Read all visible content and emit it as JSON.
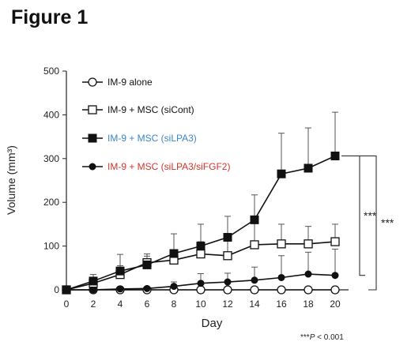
{
  "figure_title": "Figure 1",
  "significance_note": {
    "stars": "***",
    "p_label": "P",
    "rest": " < 0.001"
  },
  "colors": {
    "axis": "#222222",
    "legend_siLPA3": "#3a86c8",
    "legend_siLPA3_siFGF2": "#d6322a",
    "series": "#111111"
  },
  "chart_data": {
    "type": "line",
    "xlabel": "Day",
    "ylabel": "Volume (mm³)",
    "x": [
      0,
      2,
      4,
      6,
      8,
      10,
      12,
      14,
      16,
      18,
      20
    ],
    "xlim": [
      0,
      21
    ],
    "ylim": [
      0,
      500
    ],
    "yticks": [
      0,
      100,
      200,
      300,
      400,
      500
    ],
    "grid": false,
    "legend_position": "top-left",
    "series": [
      {
        "name": "IM-9 alone",
        "marker": "open-circle",
        "legend_color": "#111111",
        "values": [
          0,
          0,
          0,
          0,
          0,
          0,
          0,
          0,
          0,
          0,
          0
        ],
        "errors": [
          0,
          0,
          0,
          0,
          0,
          0,
          0,
          0,
          0,
          0,
          0
        ]
      },
      {
        "name": "IM-9 + MSC (siCont)",
        "marker": "open-square",
        "legend_color": "#111111",
        "values": [
          0,
          15,
          35,
          62,
          68,
          82,
          78,
          103,
          105,
          105,
          110
        ],
        "errors": [
          0,
          10,
          20,
          20,
          22,
          28,
          45,
          50,
          45,
          40,
          40
        ]
      },
      {
        "name": "IM-9 + MSC (siLPA3)",
        "marker": "filled-square",
        "legend_color": "#3a86c8",
        "values": [
          0,
          20,
          43,
          57,
          83,
          100,
          120,
          160,
          265,
          278,
          306
        ],
        "errors": [
          0,
          15,
          38,
          20,
          45,
          50,
          48,
          57,
          93,
          92,
          100
        ]
      },
      {
        "name": "IM-9 + MSC (siLPA3/siFGF2)",
        "marker": "filled-circle",
        "legend_color": "#d6322a",
        "values": [
          0,
          0,
          2,
          3,
          8,
          15,
          18,
          22,
          28,
          36,
          33
        ],
        "errors": [
          0,
          0,
          0,
          3,
          10,
          22,
          20,
          30,
          50,
          50,
          60
        ]
      }
    ],
    "annotations": [
      {
        "text": "***",
        "between": [
          "IM-9 + MSC (siLPA3)",
          "IM-9 + MSC (siLPA3/siFGF2)"
        ]
      },
      {
        "text": "***",
        "between": [
          "IM-9 + MSC (siLPA3)",
          "IM-9 alone"
        ]
      }
    ]
  }
}
